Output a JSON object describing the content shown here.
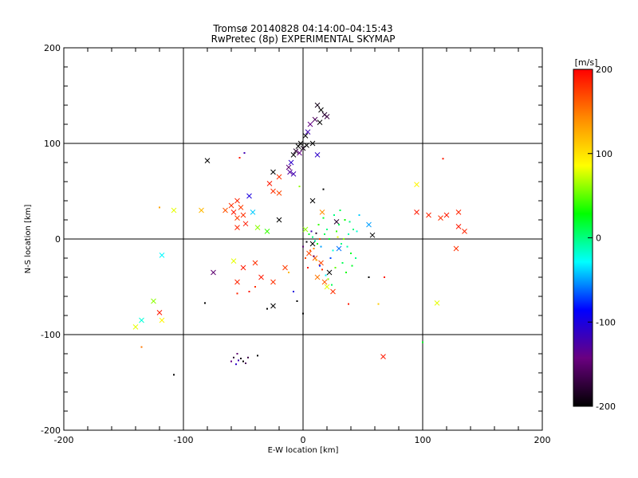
{
  "chart_data": {
    "type": "scatter",
    "title": "Tromsø 20140828 04:14:00–04:15:43",
    "subtitle": "RwPretec (8p) EXPERIMENTAL SKYMAP",
    "xlabel": "E-W location [km]",
    "ylabel": "N-S location [km]",
    "xlim": [
      -200,
      200
    ],
    "ylim": [
      -200,
      200
    ],
    "x_ticks": [
      "-200",
      "-100",
      "0",
      "100",
      "200"
    ],
    "y_ticks": [
      "-200",
      "-100",
      "0",
      "100",
      "200"
    ],
    "gridlines": [
      -100,
      0,
      100
    ],
    "grid": true,
    "colorbar": {
      "label": "[m/s]",
      "range": [
        -200,
        200
      ],
      "tick_values": [
        200,
        100,
        0,
        -100,
        -200
      ],
      "tick_labels": [
        "200",
        "100",
        "0",
        "-100",
        "-200"
      ],
      "colormap": [
        "#000000",
        "#6a0080",
        "#0000ff",
        "#00ffff",
        "#00ff00",
        "#ffff00",
        "#ff8800",
        "#ff0000"
      ]
    },
    "marker_types": [
      "x",
      "dot"
    ],
    "points": [
      {
        "x": 15,
        "y": 135,
        "v": -200,
        "m": "x"
      },
      {
        "x": 12,
        "y": 140,
        "v": -190,
        "m": "x"
      },
      {
        "x": 18,
        "y": 130,
        "v": -180,
        "m": "x"
      },
      {
        "x": 10,
        "y": 125,
        "v": -160,
        "m": "x"
      },
      {
        "x": 20,
        "y": 128,
        "v": -170,
        "m": "x"
      },
      {
        "x": 14,
        "y": 122,
        "v": -200,
        "m": "x"
      },
      {
        "x": 6,
        "y": 120,
        "v": -140,
        "m": "x"
      },
      {
        "x": 4,
        "y": 112,
        "v": -120,
        "m": "x"
      },
      {
        "x": 2,
        "y": 108,
        "v": -200,
        "m": "x"
      },
      {
        "x": -2,
        "y": 100,
        "v": -200,
        "m": "x"
      },
      {
        "x": -4,
        "y": 97,
        "v": -200,
        "m": "x"
      },
      {
        "x": 0,
        "y": 95,
        "v": -190,
        "m": "x"
      },
      {
        "x": 3,
        "y": 98,
        "v": -200,
        "m": "x"
      },
      {
        "x": 8,
        "y": 100,
        "v": -200,
        "m": "x"
      },
      {
        "x": -6,
        "y": 92,
        "v": -180,
        "m": "x"
      },
      {
        "x": -3,
        "y": 90,
        "v": -140,
        "m": "x"
      },
      {
        "x": -8,
        "y": 88,
        "v": -200,
        "m": "x"
      },
      {
        "x": -10,
        "y": 80,
        "v": -110,
        "m": "x"
      },
      {
        "x": -12,
        "y": 75,
        "v": -150,
        "m": "x"
      },
      {
        "x": -11,
        "y": 70,
        "v": -130,
        "m": "x"
      },
      {
        "x": -8,
        "y": 68,
        "v": -120,
        "m": "x"
      },
      {
        "x": 12,
        "y": 88,
        "v": -110,
        "m": "x"
      },
      {
        "x": -80,
        "y": 82,
        "v": -200,
        "m": "x"
      },
      {
        "x": -25,
        "y": 70,
        "v": -200,
        "m": "x"
      },
      {
        "x": -20,
        "y": 65,
        "v": 180,
        "m": "x"
      },
      {
        "x": -28,
        "y": 58,
        "v": 190,
        "m": "x"
      },
      {
        "x": -25,
        "y": 50,
        "v": 180,
        "m": "x"
      },
      {
        "x": -20,
        "y": 48,
        "v": 170,
        "m": "x"
      },
      {
        "x": 8,
        "y": 40,
        "v": -200,
        "m": "x"
      },
      {
        "x": -45,
        "y": 45,
        "v": -100,
        "m": "x"
      },
      {
        "x": -55,
        "y": 40,
        "v": 185,
        "m": "x"
      },
      {
        "x": -60,
        "y": 35,
        "v": 180,
        "m": "x"
      },
      {
        "x": -52,
        "y": 33,
        "v": 175,
        "m": "x"
      },
      {
        "x": -65,
        "y": 30,
        "v": 165,
        "m": "x"
      },
      {
        "x": -58,
        "y": 28,
        "v": 190,
        "m": "x"
      },
      {
        "x": -50,
        "y": 25,
        "v": 180,
        "m": "x"
      },
      {
        "x": -55,
        "y": 22,
        "v": 175,
        "m": "x"
      },
      {
        "x": -42,
        "y": 28,
        "v": -40,
        "m": "x"
      },
      {
        "x": -48,
        "y": 16,
        "v": 190,
        "m": "x"
      },
      {
        "x": -55,
        "y": 12,
        "v": 185,
        "m": "x"
      },
      {
        "x": -38,
        "y": 12,
        "v": 60,
        "m": "x"
      },
      {
        "x": -30,
        "y": 8,
        "v": 40,
        "m": "x"
      },
      {
        "x": -20,
        "y": 20,
        "v": -200,
        "m": "x"
      },
      {
        "x": -85,
        "y": 30,
        "v": 120,
        "m": "x"
      },
      {
        "x": -108,
        "y": 30,
        "v": 80,
        "m": "x"
      },
      {
        "x": -118,
        "y": -17,
        "v": -30,
        "m": "x"
      },
      {
        "x": -58,
        "y": -23,
        "v": 80,
        "m": "x"
      },
      {
        "x": -50,
        "y": -30,
        "v": 190,
        "m": "x"
      },
      {
        "x": -40,
        "y": -25,
        "v": 180,
        "m": "x"
      },
      {
        "x": -35,
        "y": -40,
        "v": 190,
        "m": "x"
      },
      {
        "x": -25,
        "y": -45,
        "v": 180,
        "m": "x"
      },
      {
        "x": -15,
        "y": -30,
        "v": 175,
        "m": "x"
      },
      {
        "x": -55,
        "y": -45,
        "v": 185,
        "m": "x"
      },
      {
        "x": -75,
        "y": -35,
        "v": -150,
        "m": "x"
      },
      {
        "x": -25,
        "y": -70,
        "v": -200,
        "m": "x"
      },
      {
        "x": -125,
        "y": -65,
        "v": 60,
        "m": "x"
      },
      {
        "x": -120,
        "y": -77,
        "v": 190,
        "m": "x"
      },
      {
        "x": -135,
        "y": -85,
        "v": -20,
        "m": "x"
      },
      {
        "x": -140,
        "y": -92,
        "v": 80,
        "m": "x"
      },
      {
        "x": -118,
        "y": -85,
        "v": 90,
        "m": "x"
      },
      {
        "x": 55,
        "y": 15,
        "v": -50,
        "m": "x"
      },
      {
        "x": 58,
        "y": 4,
        "v": -200,
        "m": "x"
      },
      {
        "x": 95,
        "y": 57,
        "v": 90,
        "m": "x"
      },
      {
        "x": 95,
        "y": 28,
        "v": 190,
        "m": "x"
      },
      {
        "x": 105,
        "y": 25,
        "v": 185,
        "m": "x"
      },
      {
        "x": 115,
        "y": 22,
        "v": 180,
        "m": "x"
      },
      {
        "x": 120,
        "y": 25,
        "v": 190,
        "m": "x"
      },
      {
        "x": 130,
        "y": 28,
        "v": 185,
        "m": "x"
      },
      {
        "x": 130,
        "y": 13,
        "v": 190,
        "m": "x"
      },
      {
        "x": 135,
        "y": 8,
        "v": 185,
        "m": "x"
      },
      {
        "x": 128,
        "y": -10,
        "v": 180,
        "m": "x"
      },
      {
        "x": 112,
        "y": -67,
        "v": 80,
        "m": "x"
      },
      {
        "x": 67,
        "y": -123,
        "v": 190,
        "m": "x"
      },
      {
        "x": 5,
        "y": -15,
        "v": 170,
        "m": "x"
      },
      {
        "x": 10,
        "y": -20,
        "v": 160,
        "m": "x"
      },
      {
        "x": 15,
        "y": -25,
        "v": 170,
        "m": "x"
      },
      {
        "x": 12,
        "y": -40,
        "v": 150,
        "m": "x"
      },
      {
        "x": 18,
        "y": -45,
        "v": 160,
        "m": "x"
      },
      {
        "x": 20,
        "y": -50,
        "v": 80,
        "m": "x"
      },
      {
        "x": 25,
        "y": -55,
        "v": 180,
        "m": "x"
      },
      {
        "x": 22,
        "y": -35,
        "v": -200,
        "m": "x"
      },
      {
        "x": 8,
        "y": -5,
        "v": -200,
        "m": "x"
      },
      {
        "x": 16,
        "y": 28,
        "v": 140,
        "m": "x"
      },
      {
        "x": 28,
        "y": 18,
        "v": -180,
        "m": "x"
      },
      {
        "x": 2,
        "y": 10,
        "v": 60,
        "m": "x"
      },
      {
        "x": 30,
        "y": -10,
        "v": -60,
        "m": "x"
      },
      {
        "x": 5,
        "y": 5,
        "v": 20,
        "m": "dot"
      },
      {
        "x": 8,
        "y": 2,
        "v": 0,
        "m": "dot"
      },
      {
        "x": 10,
        "y": -2,
        "v": -10,
        "m": "dot"
      },
      {
        "x": 12,
        "y": -5,
        "v": 30,
        "m": "dot"
      },
      {
        "x": 15,
        "y": -8,
        "v": -50,
        "m": "dot"
      },
      {
        "x": 18,
        "y": 5,
        "v": 10,
        "m": "dot"
      },
      {
        "x": 20,
        "y": 10,
        "v": 0,
        "m": "dot"
      },
      {
        "x": 22,
        "y": 0,
        "v": 20,
        "m": "dot"
      },
      {
        "x": 25,
        "y": -12,
        "v": -20,
        "m": "dot"
      },
      {
        "x": 28,
        "y": 8,
        "v": 40,
        "m": "dot"
      },
      {
        "x": 30,
        "y": 15,
        "v": 10,
        "m": "dot"
      },
      {
        "x": 32,
        "y": -5,
        "v": 0,
        "m": "dot"
      },
      {
        "x": 35,
        "y": 20,
        "v": 30,
        "m": "dot"
      },
      {
        "x": 38,
        "y": 5,
        "v": -10,
        "m": "dot"
      },
      {
        "x": 40,
        "y": -15,
        "v": 20,
        "m": "dot"
      },
      {
        "x": 42,
        "y": 10,
        "v": 0,
        "m": "dot"
      },
      {
        "x": 6,
        "y": -12,
        "v": 160,
        "m": "dot"
      },
      {
        "x": 9,
        "y": -18,
        "v": -150,
        "m": "dot"
      },
      {
        "x": 11,
        "y": -22,
        "v": 120,
        "m": "dot"
      },
      {
        "x": 14,
        "y": -28,
        "v": -80,
        "m": "dot"
      },
      {
        "x": 16,
        "y": -32,
        "v": 180,
        "m": "dot"
      },
      {
        "x": 19,
        "y": -38,
        "v": -30,
        "m": "dot"
      },
      {
        "x": 21,
        "y": -42,
        "v": 60,
        "m": "dot"
      },
      {
        "x": 24,
        "y": -48,
        "v": 10,
        "m": "dot"
      },
      {
        "x": 3,
        "y": -3,
        "v": -200,
        "m": "dot"
      },
      {
        "x": 7,
        "y": 8,
        "v": -120,
        "m": "dot"
      },
      {
        "x": 13,
        "y": 15,
        "v": 40,
        "m": "dot"
      },
      {
        "x": 17,
        "y": 22,
        "v": 20,
        "m": "dot"
      },
      {
        "x": 26,
        "y": 25,
        "v": 0,
        "m": "dot"
      },
      {
        "x": 33,
        "y": -25,
        "v": 10,
        "m": "dot"
      },
      {
        "x": 36,
        "y": -35,
        "v": 30,
        "m": "dot"
      },
      {
        "x": 44,
        "y": -20,
        "v": 0,
        "m": "dot"
      },
      {
        "x": 47,
        "y": 25,
        "v": -40,
        "m": "dot"
      },
      {
        "x": 4,
        "y": -30,
        "v": 190,
        "m": "dot"
      },
      {
        "x": 2,
        "y": -20,
        "v": 170,
        "m": "dot"
      },
      {
        "x": 0,
        "y": -8,
        "v": -150,
        "m": "dot"
      },
      {
        "x": 23,
        "y": -20,
        "v": -70,
        "m": "dot"
      },
      {
        "x": 27,
        "y": -30,
        "v": 50,
        "m": "dot"
      },
      {
        "x": 29,
        "y": 2,
        "v": 80,
        "m": "dot"
      },
      {
        "x": 31,
        "y": 30,
        "v": 10,
        "m": "dot"
      },
      {
        "x": 34,
        "y": 0,
        "v": 60,
        "m": "dot"
      },
      {
        "x": 37,
        "y": -8,
        "v": -10,
        "m": "dot"
      },
      {
        "x": 39,
        "y": 18,
        "v": 0,
        "m": "dot"
      },
      {
        "x": 41,
        "y": -28,
        "v": 20,
        "m": "dot"
      },
      {
        "x": 45,
        "y": 8,
        "v": -20,
        "m": "dot"
      },
      {
        "x": 14,
        "y": 0,
        "v": 170,
        "m": "dot"
      },
      {
        "x": 11,
        "y": 6,
        "v": -180,
        "m": "dot"
      },
      {
        "x": 9,
        "y": -10,
        "v": 140,
        "m": "dot"
      },
      {
        "x": -45,
        "y": -55,
        "v": 190,
        "m": "dot"
      },
      {
        "x": -40,
        "y": -50,
        "v": 180,
        "m": "dot"
      },
      {
        "x": -55,
        "y": -57,
        "v": 185,
        "m": "dot"
      },
      {
        "x": -12,
        "y": -35,
        "v": 120,
        "m": "dot"
      },
      {
        "x": -8,
        "y": -55,
        "v": -100,
        "m": "dot"
      },
      {
        "x": -5,
        "y": -65,
        "v": -200,
        "m": "dot"
      },
      {
        "x": 0,
        "y": -78,
        "v": -200,
        "m": "dot"
      },
      {
        "x": -30,
        "y": -73,
        "v": -200,
        "m": "dot"
      },
      {
        "x": -82,
        "y": -67,
        "v": -200,
        "m": "dot"
      },
      {
        "x": -108,
        "y": -142,
        "v": -200,
        "m": "dot"
      },
      {
        "x": -135,
        "y": -113,
        "v": 150,
        "m": "dot"
      },
      {
        "x": 55,
        "y": -40,
        "v": -200,
        "m": "dot"
      },
      {
        "x": 68,
        "y": -40,
        "v": 190,
        "m": "dot"
      },
      {
        "x": 63,
        "y": -68,
        "v": 110,
        "m": "dot"
      },
      {
        "x": 38,
        "y": -68,
        "v": 190,
        "m": "dot"
      },
      {
        "x": 100,
        "y": -108,
        "v": 20,
        "m": "dot"
      },
      {
        "x": 117,
        "y": 84,
        "v": 190,
        "m": "dot"
      },
      {
        "x": -49,
        "y": 90,
        "v": -120,
        "m": "dot"
      },
      {
        "x": -53,
        "y": 85,
        "v": 190,
        "m": "dot"
      },
      {
        "x": -120,
        "y": 33,
        "v": 130,
        "m": "dot"
      },
      {
        "x": 17,
        "y": 52,
        "v": -200,
        "m": "dot"
      },
      {
        "x": -3,
        "y": 55,
        "v": 60,
        "m": "dot"
      },
      {
        "x": -55,
        "y": -120,
        "v": -150,
        "m": "dot"
      },
      {
        "x": -58,
        "y": -124,
        "v": -180,
        "m": "dot"
      },
      {
        "x": -54,
        "y": -127,
        "v": -120,
        "m": "dot"
      },
      {
        "x": -50,
        "y": -128,
        "v": -200,
        "m": "dot"
      },
      {
        "x": -48,
        "y": -130,
        "v": -160,
        "m": "dot"
      },
      {
        "x": -52,
        "y": -125,
        "v": -190,
        "m": "dot"
      },
      {
        "x": -60,
        "y": -128,
        "v": -140,
        "m": "dot"
      },
      {
        "x": -46,
        "y": -124,
        "v": -170,
        "m": "dot"
      },
      {
        "x": -38,
        "y": -122,
        "v": -200,
        "m": "dot"
      },
      {
        "x": -56,
        "y": -131,
        "v": -110,
        "m": "dot"
      }
    ]
  }
}
